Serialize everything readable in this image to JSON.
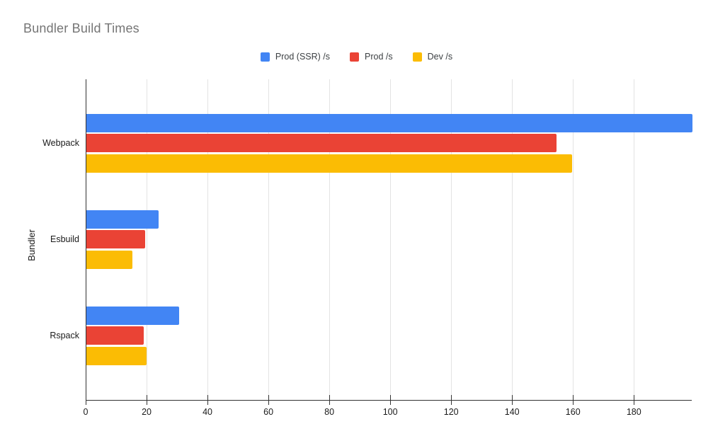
{
  "chart_data": {
    "type": "bar",
    "orientation": "horizontal",
    "title": "Bundler Build Times",
    "xlabel": "",
    "ylabel": "Bundler",
    "categories": [
      "Webpack",
      "Esbuild",
      "Rspack"
    ],
    "series": [
      {
        "name": "Prod (SSR) /s",
        "color": "#4285F4",
        "values": [
          199,
          23.8,
          30.5
        ]
      },
      {
        "name": "Prod /s",
        "color": "#EA4335",
        "values": [
          154.4,
          19.4,
          18.8
        ]
      },
      {
        "name": "Dev /s",
        "color": "#FBBC04",
        "values": [
          159.5,
          15.0,
          19.7
        ]
      }
    ],
    "xlim": [
      0,
      199
    ],
    "xticks": [
      0,
      20,
      40,
      60,
      80,
      100,
      120,
      140,
      160,
      180
    ],
    "grid": true,
    "legend_position": "top-center",
    "axis_color": "#333333",
    "gridline_color": "#e3e3e3",
    "title_color": "#757575"
  }
}
